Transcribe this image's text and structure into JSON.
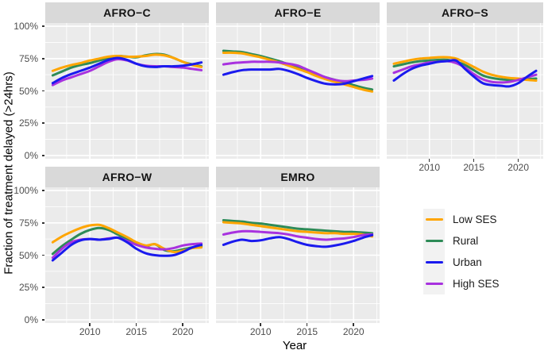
{
  "chart_data": {
    "type": "line",
    "xlabel": "Year",
    "ylabel": "Fraction of treatment delayed (>24hrs)",
    "years": [
      2006,
      2007,
      2008,
      2009,
      2010,
      2011,
      2012,
      2013,
      2014,
      2015,
      2016,
      2017,
      2018,
      2019,
      2020,
      2021,
      2022
    ],
    "x_domain": [
      2005.2,
      2022.8
    ],
    "y_domain": [
      -2.5,
      102.5
    ],
    "x_major": [
      2010,
      2015,
      2020
    ],
    "x_tick_labels": [
      "2010",
      "2015",
      "2020"
    ],
    "x_minor": [
      2007.5,
      2012.5,
      2017.5,
      2022.5
    ],
    "y_major": [
      0,
      25,
      50,
      75,
      100
    ],
    "y_tick_labels": [
      "0%",
      "25%",
      "50%",
      "75%",
      "100%"
    ],
    "y_minor": [
      12.5,
      37.5,
      62.5,
      87.5
    ],
    "panel_bg": "#EBEBEB",
    "strip_bg": "#D9D9D9",
    "grid_color": "#FFFFFF",
    "legend_position": "right",
    "legend": {
      "items": [
        {
          "label": "Low SES",
          "color": "#FFA500"
        },
        {
          "label": "Rural",
          "color": "#2E8B57"
        },
        {
          "label": "Urban",
          "color": "#1A1AEE"
        },
        {
          "label": "High SES",
          "color": "#A832DF"
        }
      ]
    },
    "facets": [
      {
        "title": "AFRO−C",
        "series": [
          {
            "name": "Rural",
            "color": "#2E8B57",
            "values": [
              62,
              65,
              68,
              70,
              71.5,
              73.5,
              75.5,
              77,
              76.5,
              76,
              77.5,
              78.5,
              78,
              75.5,
              72.5,
              70.5,
              69
            ]
          },
          {
            "name": "Low SES",
            "color": "#FFA500",
            "values": [
              65.5,
              68,
              70,
              71.5,
              73.5,
              75,
              76.5,
              77,
              76.5,
              76.5,
              77,
              78,
              77.5,
              75.5,
              72.5,
              70,
              68.5
            ]
          },
          {
            "name": "High SES",
            "color": "#A832DF",
            "values": [
              54.5,
              58,
              60.5,
              63,
              65.5,
              69,
              72.5,
              74.5,
              73.5,
              71,
              69.5,
              69,
              69,
              68.5,
              68,
              67,
              66
            ]
          },
          {
            "name": "Urban",
            "color": "#1A1AEE",
            "values": [
              56,
              60,
              63,
              65.5,
              68,
              71,
              74,
              75.5,
              74,
              71,
              69,
              68.5,
              69,
              69,
              69.5,
              70.5,
              72
            ]
          }
        ]
      },
      {
        "title": "AFRO−E",
        "series": [
          {
            "name": "Rural",
            "color": "#2E8B57",
            "values": [
              81,
              80.5,
              80,
              78.5,
              77,
              75,
              73,
              70.5,
              68,
              65.5,
              63,
              60.5,
              58.5,
              56.5,
              54.5,
              52.5,
              51
            ]
          },
          {
            "name": "Low SES",
            "color": "#FFA500",
            "values": [
              79.5,
              79.5,
              79,
              77.5,
              76,
              74,
              72,
              69.5,
              67,
              64.5,
              61.5,
              59,
              57,
              55,
              53,
              51,
              49.5
            ]
          },
          {
            "name": "High SES",
            "color": "#A832DF",
            "values": [
              70.5,
              71.5,
              72,
              72.5,
              72.5,
              72.5,
              72,
              71,
              69.5,
              66.5,
              63.5,
              60.5,
              58.5,
              57.5,
              58,
              58.5,
              59.5
            ]
          },
          {
            "name": "Urban",
            "color": "#1A1AEE",
            "values": [
              62.5,
              64.5,
              66,
              66.5,
              66.5,
              66.5,
              67,
              65.5,
              63,
              60,
              57.5,
              55.5,
              55,
              55.5,
              57.5,
              59.5,
              61.5
            ]
          }
        ]
      },
      {
        "title": "AFRO−S",
        "series": [
          {
            "name": "Rural",
            "color": "#2E8B57",
            "values": [
              69,
              70.5,
              72,
              73,
              73.5,
              74,
              74,
              72.5,
              70,
              66,
              62,
              60,
              59,
              58.5,
              58.5,
              59,
              59.5
            ]
          },
          {
            "name": "Low SES",
            "color": "#FFA500",
            "values": [
              71,
              72.5,
              74,
              75,
              75.5,
              76,
              76,
              75,
              72,
              68.5,
              65,
              62.5,
              61,
              60,
              59.5,
              58.5,
              58
            ]
          },
          {
            "name": "High SES",
            "color": "#A832DF",
            "values": [
              64,
              66.5,
              69,
              70.5,
              72,
              72.5,
              73,
              71.5,
              68,
              63,
              59,
              57,
              56.5,
              57,
              58.5,
              60.5,
              62.5
            ]
          },
          {
            "name": "Urban",
            "color": "#1A1AEE",
            "values": [
              58,
              63,
              67,
              69.5,
              71,
              72.5,
              73,
              73.5,
              67,
              61,
              56,
              54.5,
              54,
              53.5,
              56,
              61,
              65.5
            ]
          }
        ]
      },
      {
        "title": "AFRO−W",
        "series": [
          {
            "name": "Rural",
            "color": "#2E8B57",
            "values": [
              51,
              57,
              62,
              66.5,
              69.5,
              71,
              69.5,
              66,
              62,
              59,
              57,
              58.5,
              54,
              53,
              54.5,
              56,
              57
            ]
          },
          {
            "name": "Low SES",
            "color": "#FFA500",
            "values": [
              60,
              64.5,
              68,
              71,
              73,
              73.5,
              71,
              67.5,
              64,
              60,
              57.5,
              58.5,
              55,
              52.5,
              53.5,
              55.5,
              56
            ]
          },
          {
            "name": "High SES",
            "color": "#A832DF",
            "values": [
              48,
              55,
              60,
              62,
              62.5,
              62,
              63,
              63.5,
              61,
              58,
              56,
              55,
              54.5,
              55.5,
              57.5,
              58.5,
              59
            ]
          },
          {
            "name": "Urban",
            "color": "#1A1AEE",
            "values": [
              46,
              52,
              58,
              61.5,
              62.5,
              62,
              62.5,
              63.5,
              60,
              55,
              51.5,
              50,
              49.5,
              50,
              52.5,
              56,
              58
            ]
          }
        ]
      },
      {
        "title": "EMRO",
        "series": [
          {
            "name": "Rural",
            "color": "#2E8B57",
            "values": [
              77,
              76.5,
              76,
              75,
              74.5,
              73.5,
              72.5,
              71.5,
              70.5,
              70,
              69.5,
              69,
              68.5,
              68,
              68,
              67.5,
              67
            ]
          },
          {
            "name": "Low SES",
            "color": "#FFA500",
            "values": [
              75.5,
              75,
              74.5,
              73.5,
              72.5,
              71.5,
              70.5,
              69.5,
              68.5,
              68,
              67.5,
              67,
              67,
              66.5,
              66.5,
              66,
              64.5
            ]
          },
          {
            "name": "High SES",
            "color": "#A832DF",
            "values": [
              66,
              67.5,
              68.5,
              68.5,
              68,
              67.5,
              67,
              66,
              64.5,
              63.5,
              62.5,
              62,
              62.5,
              63,
              64,
              65.5,
              66
            ]
          },
          {
            "name": "Urban",
            "color": "#1A1AEE",
            "values": [
              58,
              60.5,
              62,
              61,
              61.5,
              63,
              64,
              62.5,
              60,
              58,
              57,
              56.5,
              57.5,
              59,
              61,
              63.5,
              65.5
            ]
          }
        ]
      }
    ]
  }
}
